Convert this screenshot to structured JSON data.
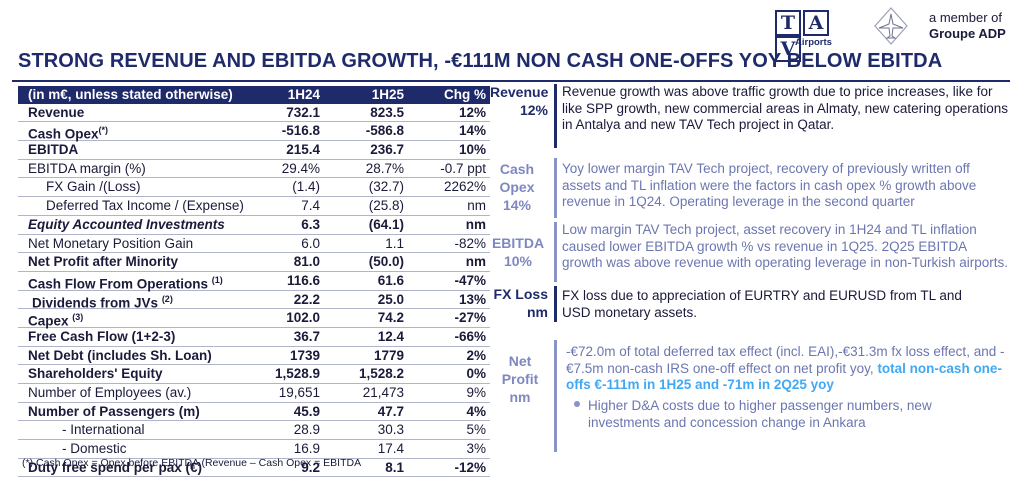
{
  "header": {
    "title": "STRONG REVENUE AND EBITDA GROWTH, -€111M NON CASH ONE-OFFS YOY BELOW EBITDA",
    "logo_letters": [
      "T",
      "A",
      "V"
    ],
    "logo_sub": "Airports",
    "member_line1": "a member of",
    "member_line2": "Groupe ADP"
  },
  "table": {
    "headers": [
      "(in m€, unless stated otherwise)",
      "1H24",
      "1H25",
      "Chg %"
    ],
    "rows": [
      {
        "label": "Revenue",
        "v1": "732.1",
        "v2": "823.5",
        "chg": "12%"
      },
      {
        "label": "Cash Opex",
        "sup": "(*)",
        "v1": "-516.8",
        "v2": "-586.8",
        "chg": "14%"
      },
      {
        "label": "EBITDA",
        "v1": "215.4",
        "v2": "236.7",
        "chg": "10%"
      },
      {
        "label": "EBITDA margin (%)",
        "v1": "29.4%",
        "v2": "28.7%",
        "chg": "-0.7 ppt"
      },
      {
        "label": "FX Gain /(Loss)",
        "v1": "(1.4)",
        "v2": "(32.7)",
        "chg": "2262%"
      },
      {
        "label": "Deferred Tax Income / (Expense)",
        "v1": "7.4",
        "v2": "(25.8)",
        "chg": "nm"
      },
      {
        "label": "Equity Accounted Investments",
        "v1": "6.3",
        "v2": "(64.1)",
        "chg": "nm"
      },
      {
        "label": "Net Monetary Position Gain",
        "v1": "6.0",
        "v2": "1.1",
        "chg": "-82%"
      },
      {
        "label": "Net Profit after Minority",
        "v1": "81.0",
        "v2": "(50.0)",
        "chg": "nm"
      },
      {
        "label": "Cash Flow From Operations",
        "sup": "(1)",
        "v1": "116.6",
        "v2": "61.6",
        "chg": "-47%"
      },
      {
        "label": "Dividends from JVs",
        "sup": "(2)",
        "v1": "22.2",
        "v2": "25.0",
        "chg": "13%"
      },
      {
        "label": "Capex",
        "sup": "(3)",
        "v1": "102.0",
        "v2": "74.2",
        "chg": "-27%"
      },
      {
        "label": "Free Cash Flow (1+2-3)",
        "v1": "36.7",
        "v2": "12.4",
        "chg": "-66%"
      },
      {
        "label": "Net Debt (includes Sh. Loan)",
        "v1": "1739",
        "v2": "1779",
        "chg": "2%"
      },
      {
        "label": "Shareholders' Equity",
        "v1": "1,528.9",
        "v2": "1,528.2",
        "chg": "0%"
      },
      {
        "label": "Number of Employees (av.)",
        "v1": "19,651",
        "v2": "21,473",
        "chg": "9%"
      },
      {
        "label": "Number of Passengers (m)",
        "v1": "45.9",
        "v2": "47.7",
        "chg": "4%"
      },
      {
        "label": "- International",
        "v1": "28.9",
        "v2": "30.3",
        "chg": "5%"
      },
      {
        "label": "- Domestic",
        "v1": "16.9",
        "v2": "17.4",
        "chg": "3%"
      },
      {
        "label": "Duty free spend per pax (€)",
        "v1": "9.2",
        "v2": "8.1",
        "chg": "-12%"
      }
    ],
    "footnote": "(*) Cash Opex = Opex before EBITDA (Revenue – Cash Opex = EBITDA"
  },
  "commentary": {
    "revenue": {
      "label1": "Revenue",
      "label2": "12%",
      "text": "Revenue growth was above traffic growth due to price increases, like for like SPP growth, new commercial areas in Almaty, new catering operations in Antalya and new TAV Tech project in Qatar."
    },
    "cash_opex": {
      "label1": "Cash",
      "label2": "Opex",
      "label3": "14%",
      "text": "Yoy lower margin TAV Tech project, recovery of previously written off assets and TL inflation were the factors in cash opex % growth above revenue in 1Q24. Operating leverage in the second quarter"
    },
    "ebitda": {
      "label1": "EBITDA",
      "label2": "10%",
      "text": "Low margin TAV Tech project, asset recovery in 1H24 and TL inflation caused lower  EBITDA growth % vs revenue in 1Q25. 2Q25 EBITDA growth was above revenue with operating leverage in non-Turkish airports."
    },
    "fx_loss": {
      "label1": "FX Loss",
      "label2": "nm",
      "text": "FX loss due to appreciation of EURTRY  and EURUSD from TL and USD monetary assets."
    },
    "net_profit": {
      "label1": "Net",
      "label2": "Profit",
      "label3": "nm",
      "text": "-€72.0m of total deferred tax effect (incl. EAI),-€31.3m fx loss effect, and -€7.5m non-cash IRS one-off effect on net profit yoy, ",
      "highlight": "total non-cash one-offs €-111m in 1H25 and -71m in 2Q25  yoy",
      "bullet": "Higher D&A costs due to higher passenger numbers, new investments and concession change in Ankara"
    }
  },
  "colors": {
    "navy": "#1f2a6b",
    "light_blue": "#7e88c0",
    "highlight": "#3fa9f5"
  },
  "icons": [
    "adp-airplane-icon"
  ]
}
